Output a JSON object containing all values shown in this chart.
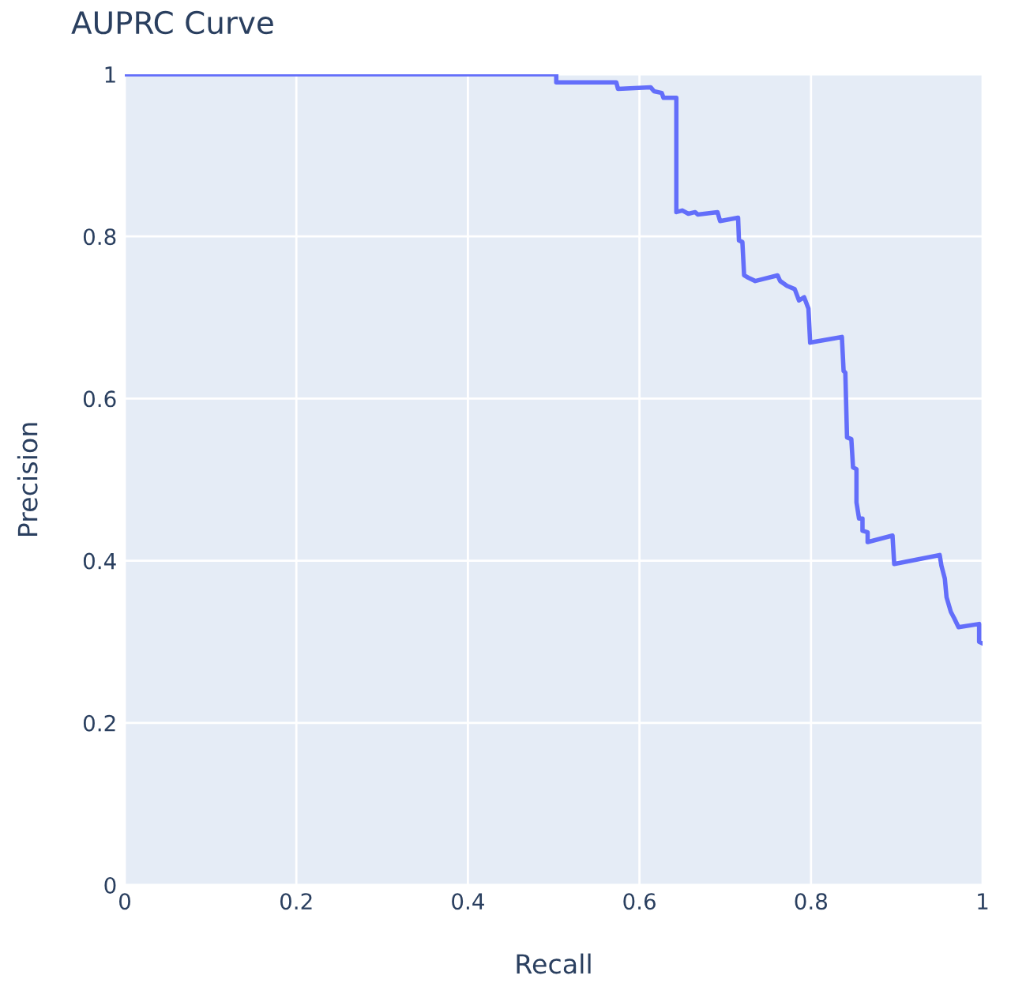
{
  "chart_data": {
    "type": "line",
    "title": "AUPRC Curve",
    "xlabel": "Recall",
    "ylabel": "Precision",
    "series": [
      {
        "color": "#636efa",
        "x": [
          0,
          0.503,
          0.503,
          0.573,
          0.575,
          0.613,
          0.617,
          0.626,
          0.628,
          0.643,
          0.643,
          0.65,
          0.657,
          0.665,
          0.668,
          0.691,
          0.694,
          0.715,
          0.716,
          0.72,
          0.722,
          0.727,
          0.735,
          0.761,
          0.764,
          0.772,
          0.781,
          0.786,
          0.792,
          0.797,
          0.799,
          0.836,
          0.838,
          0.84,
          0.842,
          0.847,
          0.849,
          0.853,
          0.853,
          0.856,
          0.86,
          0.86,
          0.866,
          0.866,
          0.895,
          0.897,
          0.95,
          0.952,
          0.956,
          0.958,
          0.963,
          0.967,
          0.972,
          0.996,
          0.996,
          1.0
        ],
        "values": [
          1.0,
          1.0,
          0.99,
          0.99,
          0.982,
          0.984,
          0.979,
          0.977,
          0.971,
          0.971,
          0.83,
          0.832,
          0.828,
          0.83,
          0.827,
          0.83,
          0.819,
          0.823,
          0.795,
          0.793,
          0.752,
          0.749,
          0.745,
          0.752,
          0.745,
          0.739,
          0.735,
          0.721,
          0.725,
          0.711,
          0.669,
          0.676,
          0.634,
          0.632,
          0.552,
          0.55,
          0.515,
          0.513,
          0.472,
          0.452,
          0.452,
          0.437,
          0.435,
          0.423,
          0.431,
          0.396,
          0.407,
          0.394,
          0.378,
          0.355,
          0.337,
          0.329,
          0.318,
          0.322,
          0.3,
          0.298
        ]
      }
    ],
    "xlim": [
      0,
      1
    ],
    "ylim": [
      0,
      1
    ],
    "xticks": [
      0,
      0.2,
      0.4,
      0.6,
      0.8,
      1
    ],
    "yticks": [
      0,
      0.2,
      0.4,
      0.6,
      0.8,
      1
    ],
    "grid": true,
    "line_style": "solid",
    "marker": "none"
  }
}
